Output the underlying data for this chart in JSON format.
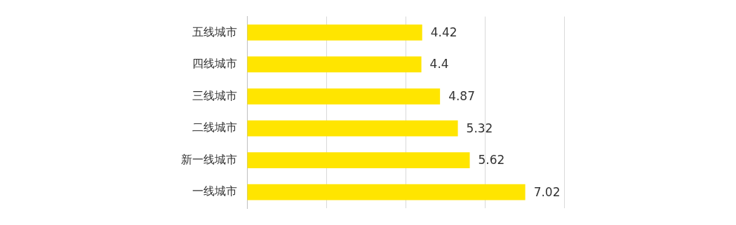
{
  "chart_data": {
    "type": "bar",
    "orientation": "horizontal",
    "categories": [
      "五线城市",
      "四线城市",
      "三线城市",
      "二线城市",
      "新一线城市",
      "一线城市"
    ],
    "values": [
      4.42,
      4.4,
      4.87,
      5.32,
      5.62,
      7.02
    ],
    "color": "#ffe500",
    "xlim": [
      0,
      8
    ],
    "xticks": [
      {
        "value": 0,
        "label": null
      },
      {
        "value": 2,
        "label": null
      },
      {
        "value": 4,
        "label": null
      },
      {
        "value": 6,
        "label": null
      },
      {
        "value": 8,
        "label": null
      }
    ],
    "grid": "x",
    "legend": false,
    "tick_labels": "y",
    "data_labels": true
  }
}
